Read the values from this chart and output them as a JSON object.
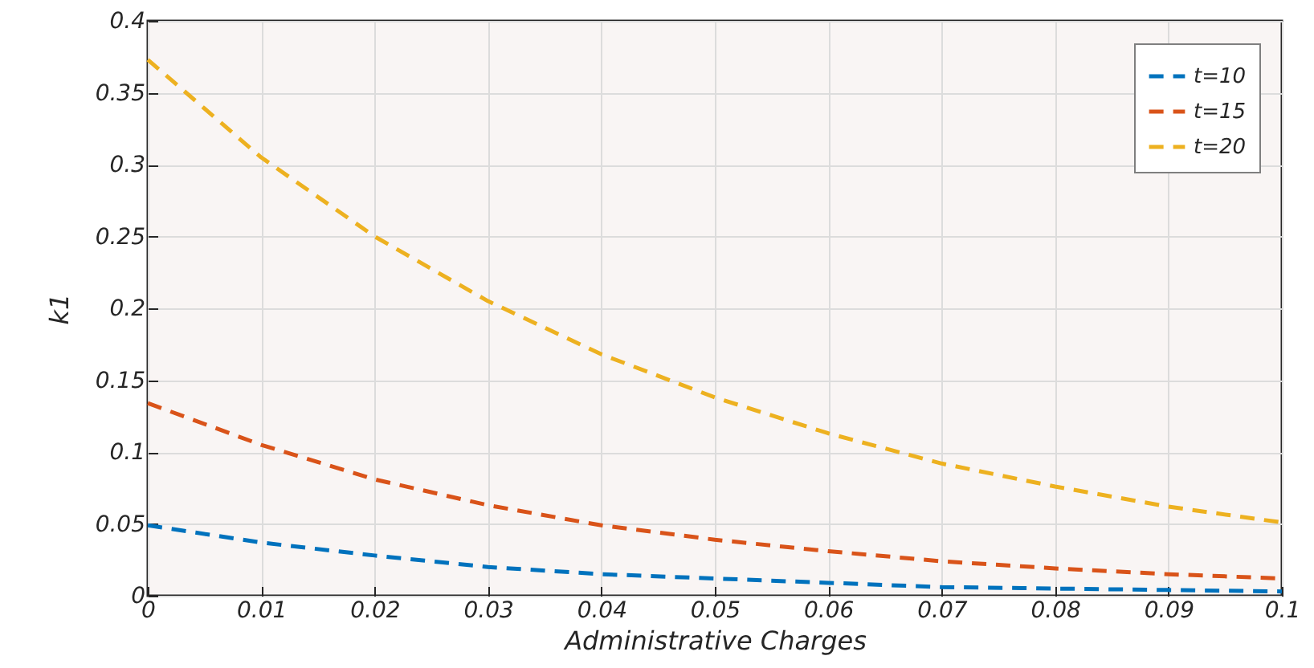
{
  "chart_data": {
    "type": "line",
    "xlabel": "Administrative Charges",
    "ylabel": "k1",
    "x": [
      0,
      0.01,
      0.02,
      0.03,
      0.04,
      0.05,
      0.06,
      0.07,
      0.08,
      0.09,
      0.1
    ],
    "series": [
      {
        "name": "t=10",
        "color": "#0072bd",
        "values": [
          0.049,
          0.037,
          0.028,
          0.02,
          0.015,
          0.012,
          0.009,
          0.006,
          0.005,
          0.004,
          0.003
        ]
      },
      {
        "name": "t=15",
        "color": "#d95319",
        "values": [
          0.134,
          0.105,
          0.081,
          0.063,
          0.049,
          0.039,
          0.031,
          0.024,
          0.019,
          0.015,
          0.012
        ]
      },
      {
        "name": "t=20",
        "color": "#edb120",
        "values": [
          0.373,
          0.305,
          0.25,
          0.205,
          0.168,
          0.138,
          0.113,
          0.092,
          0.076,
          0.062,
          0.051
        ]
      }
    ],
    "xlim": [
      0,
      0.1
    ],
    "xticks": [
      0,
      0.01,
      0.02,
      0.03,
      0.04,
      0.05,
      0.06,
      0.07,
      0.08,
      0.09,
      0.1
    ],
    "ylim": [
      0,
      0.4
    ],
    "yticks": [
      0,
      0.05,
      0.1,
      0.15,
      0.2,
      0.25,
      0.3,
      0.35,
      0.4
    ],
    "grid": true,
    "legend": "top right",
    "line_style": "dashed",
    "marker": "none"
  }
}
